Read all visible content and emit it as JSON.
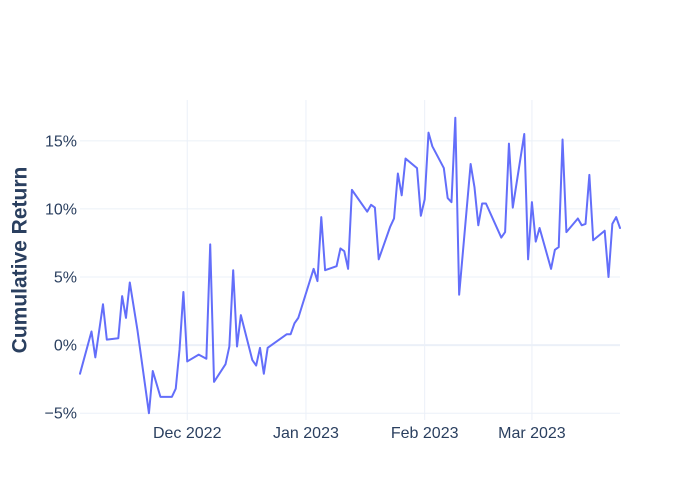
{
  "chart_data": {
    "type": "line",
    "title": "",
    "xlabel": "",
    "ylabel": "Cumulative Return",
    "ylim": [
      -5.5,
      18.0
    ],
    "xlim": [
      "2022-11-03",
      "2023-03-24"
    ],
    "y_ticks": [
      {
        "value": -5,
        "label": "−5%"
      },
      {
        "value": 0,
        "label": "0%"
      },
      {
        "value": 5,
        "label": "5%"
      },
      {
        "value": 10,
        "label": "10%"
      },
      {
        "value": 15,
        "label": "15%"
      }
    ],
    "x_ticks": [
      {
        "date": "2022-12-01",
        "label": "Dec 2022"
      },
      {
        "date": "2023-01-01",
        "label": "Jan 2023"
      },
      {
        "date": "2023-02-01",
        "label": "Feb 2023"
      },
      {
        "date": "2023-03-01",
        "label": "Mar 2023"
      }
    ],
    "grid": true,
    "series": [
      {
        "color": "#636efa",
        "points": [
          [
            "2022-11-03",
            -2.1
          ],
          [
            "2022-11-06",
            1.0
          ],
          [
            "2022-11-07",
            -0.9
          ],
          [
            "2022-11-09",
            3.0
          ],
          [
            "2022-11-10",
            0.4
          ],
          [
            "2022-11-13",
            0.5
          ],
          [
            "2022-11-14",
            3.6
          ],
          [
            "2022-11-15",
            2.0
          ],
          [
            "2022-11-16",
            4.6
          ],
          [
            "2022-11-18",
            1.1
          ],
          [
            "2022-11-21",
            -5.0
          ],
          [
            "2022-11-22",
            -1.9
          ],
          [
            "2022-11-24",
            -3.8
          ],
          [
            "2022-11-27",
            -3.8
          ],
          [
            "2022-11-28",
            -3.2
          ],
          [
            "2022-11-29",
            -0.3
          ],
          [
            "2022-11-30",
            3.9
          ],
          [
            "2022-12-01",
            -1.2
          ],
          [
            "2022-12-04",
            -0.7
          ],
          [
            "2022-12-06",
            -1.0
          ],
          [
            "2022-12-07",
            7.4
          ],
          [
            "2022-12-08",
            -2.7
          ],
          [
            "2022-12-11",
            -1.4
          ],
          [
            "2022-12-12",
            -0.1
          ],
          [
            "2022-12-13",
            5.5
          ],
          [
            "2022-12-14",
            -0.1
          ],
          [
            "2022-12-15",
            2.2
          ],
          [
            "2022-12-18",
            -1.1
          ],
          [
            "2022-12-19",
            -1.5
          ],
          [
            "2022-12-20",
            -0.2
          ],
          [
            "2022-12-21",
            -2.1
          ],
          [
            "2022-12-22",
            -0.2
          ],
          [
            "2022-12-27",
            0.8
          ],
          [
            "2022-12-28",
            0.8
          ],
          [
            "2022-12-29",
            1.6
          ],
          [
            "2022-12-30",
            2.0
          ],
          [
            "2023-01-03",
            5.6
          ],
          [
            "2023-01-04",
            4.7
          ],
          [
            "2023-01-05",
            9.4
          ],
          [
            "2023-01-06",
            5.5
          ],
          [
            "2023-01-09",
            5.8
          ],
          [
            "2023-01-10",
            7.1
          ],
          [
            "2023-01-11",
            6.9
          ],
          [
            "2023-01-12",
            5.6
          ],
          [
            "2023-01-13",
            11.4
          ],
          [
            "2023-01-17",
            9.8
          ],
          [
            "2023-01-18",
            10.3
          ],
          [
            "2023-01-19",
            10.1
          ],
          [
            "2023-01-20",
            6.3
          ],
          [
            "2023-01-23",
            8.7
          ],
          [
            "2023-01-24",
            9.3
          ],
          [
            "2023-01-25",
            12.6
          ],
          [
            "2023-01-26",
            11.0
          ],
          [
            "2023-01-27",
            13.7
          ],
          [
            "2023-01-30",
            13.0
          ],
          [
            "2023-01-31",
            9.5
          ],
          [
            "2023-02-01",
            10.7
          ],
          [
            "2023-02-02",
            15.6
          ],
          [
            "2023-02-03",
            14.6
          ],
          [
            "2023-02-06",
            13.0
          ],
          [
            "2023-02-07",
            10.8
          ],
          [
            "2023-02-08",
            10.5
          ],
          [
            "2023-02-09",
            16.7
          ],
          [
            "2023-02-10",
            3.7
          ],
          [
            "2023-02-13",
            13.3
          ],
          [
            "2023-02-14",
            11.6
          ],
          [
            "2023-02-15",
            8.8
          ],
          [
            "2023-02-16",
            10.4
          ],
          [
            "2023-02-17",
            10.4
          ],
          [
            "2023-02-21",
            7.9
          ],
          [
            "2023-02-22",
            8.3
          ],
          [
            "2023-02-23",
            14.8
          ],
          [
            "2023-02-24",
            10.1
          ],
          [
            "2023-02-27",
            15.5
          ],
          [
            "2023-02-28",
            6.3
          ],
          [
            "2023-03-01",
            10.5
          ],
          [
            "2023-03-02",
            7.6
          ],
          [
            "2023-03-03",
            8.6
          ],
          [
            "2023-03-06",
            5.6
          ],
          [
            "2023-03-07",
            7.0
          ],
          [
            "2023-03-08",
            7.2
          ],
          [
            "2023-03-09",
            15.1
          ],
          [
            "2023-03-10",
            8.3
          ],
          [
            "2023-03-13",
            9.3
          ],
          [
            "2023-03-14",
            8.8
          ],
          [
            "2023-03-15",
            8.9
          ],
          [
            "2023-03-16",
            12.5
          ],
          [
            "2023-03-17",
            7.7
          ],
          [
            "2023-03-20",
            8.4
          ],
          [
            "2023-03-21",
            5.0
          ],
          [
            "2023-03-22",
            8.9
          ],
          [
            "2023-03-23",
            9.4
          ],
          [
            "2023-03-24",
            8.6
          ]
        ]
      }
    ]
  }
}
